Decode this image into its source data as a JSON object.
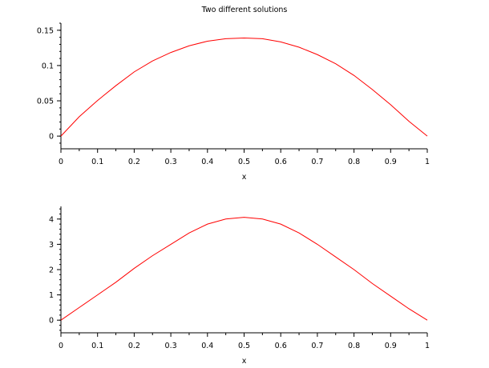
{
  "figure": {
    "title": "Two different solutions"
  },
  "chart_data": [
    {
      "type": "line",
      "title": "Two different solutions",
      "xlabel": "x",
      "ylabel": "",
      "xlim": [
        0,
        1
      ],
      "ylim": [
        -0.018,
        0.16
      ],
      "x_ticks": [
        0,
        0.1,
        0.2,
        0.3,
        0.4,
        0.5,
        0.6,
        0.7,
        0.8,
        0.9,
        1
      ],
      "x_tick_labels": [
        "0",
        "0.1",
        "0.2",
        "0.3",
        "0.4",
        "0.5",
        "0.6",
        "0.7",
        "0.8",
        "0.9",
        "1"
      ],
      "y_ticks": [
        0,
        0.05,
        0.1,
        0.15
      ],
      "y_tick_labels": [
        "0",
        "0.05",
        "0.1",
        "0.15"
      ],
      "grid": false,
      "series": [
        {
          "color": "#ff0000",
          "x": [
            0,
            0.05,
            0.1,
            0.15,
            0.2,
            0.25,
            0.3,
            0.35,
            0.4,
            0.45,
            0.5,
            0.55,
            0.6,
            0.65,
            0.7,
            0.75,
            0.8,
            0.85,
            0.9,
            0.95,
            1
          ],
          "y": [
            0,
            0.0275,
            0.0505,
            0.0715,
            0.091,
            0.1065,
            0.1185,
            0.128,
            0.1345,
            0.138,
            0.139,
            0.138,
            0.1335,
            0.126,
            0.1155,
            0.1025,
            0.086,
            0.066,
            0.0445,
            0.021,
            0
          ]
        }
      ]
    },
    {
      "type": "line",
      "title": "",
      "xlabel": "x",
      "ylabel": "",
      "xlim": [
        0,
        1
      ],
      "ylim": [
        -0.5,
        4.5
      ],
      "x_ticks": [
        0,
        0.1,
        0.2,
        0.3,
        0.4,
        0.5,
        0.6,
        0.7,
        0.8,
        0.9,
        1
      ],
      "x_tick_labels": [
        "0",
        "0.1",
        "0.2",
        "0.3",
        "0.4",
        "0.5",
        "0.6",
        "0.7",
        "0.8",
        "0.9",
        "1"
      ],
      "y_ticks": [
        0,
        1,
        2,
        3,
        4
      ],
      "y_tick_labels": [
        "0",
        "1",
        "2",
        "3",
        "4"
      ],
      "grid": false,
      "series": [
        {
          "color": "#ff0000",
          "x": [
            0,
            0.05,
            0.1,
            0.15,
            0.2,
            0.25,
            0.3,
            0.35,
            0.4,
            0.45,
            0.5,
            0.55,
            0.6,
            0.65,
            0.7,
            0.75,
            0.8,
            0.85,
            0.9,
            0.95,
            1
          ],
          "y": [
            0,
            0.5,
            1.0,
            1.5,
            2.05,
            2.55,
            3.0,
            3.45,
            3.8,
            4.0,
            4.07,
            4.0,
            3.8,
            3.45,
            3.0,
            2.5,
            2.0,
            1.45,
            0.95,
            0.45,
            0
          ]
        }
      ]
    }
  ]
}
